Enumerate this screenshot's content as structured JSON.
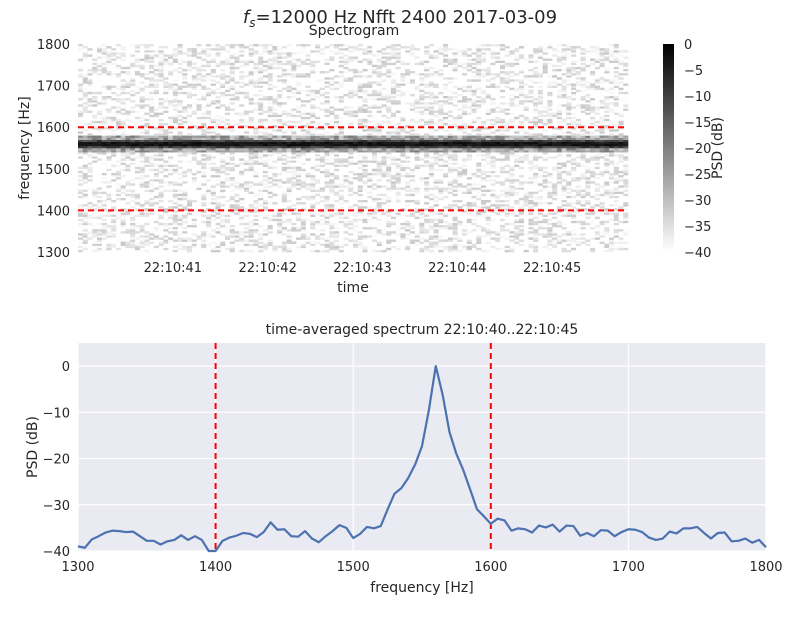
{
  "figure": {
    "suptitle_prefix": "f",
    "suptitle_sub": "s",
    "suptitle_rest": "=12000 Hz  Nfft 2400  2017-03-09"
  },
  "colors": {
    "line": "#4c72b0",
    "marker": "#ff0000",
    "grid_bg": "#eaeaf2",
    "grid_line": "#ffffff"
  },
  "chart_data": [
    {
      "type": "heatmap",
      "title": "Spectrogram",
      "xlabel": "time",
      "ylabel": "frequency [Hz]",
      "ylim": [
        1300,
        1800
      ],
      "yticks": [
        1300,
        1400,
        1500,
        1600,
        1700,
        1800
      ],
      "xlim": [
        0,
        5.8
      ],
      "xticks": [
        {
          "t": 1,
          "label": "22:10:41"
        },
        {
          "t": 2,
          "label": "22:10:42"
        },
        {
          "t": 3,
          "label": "22:10:43"
        },
        {
          "t": 4,
          "label": "22:10:44"
        },
        {
          "t": 5,
          "label": "22:10:45"
        }
      ],
      "tone_frequency": 1560,
      "markers": [
        1400,
        1600
      ],
      "colorbar": {
        "label": "PSD (dB)",
        "range": [
          -40,
          0
        ],
        "ticks": [
          0,
          -5,
          -10,
          -15,
          -20,
          -25,
          -30,
          -35,
          -40
        ]
      }
    },
    {
      "type": "line",
      "title": "time-averaged spectrum 22:10:40..22:10:45",
      "xlabel": "frequency [Hz]",
      "ylabel": "PSD (dB)",
      "xlim": [
        1300,
        1800
      ],
      "ylim": [
        -40,
        5
      ],
      "xticks": [
        1300,
        1400,
        1500,
        1600,
        1700,
        1800
      ],
      "yticks": [
        0,
        -10,
        -20,
        -30,
        -40
      ],
      "markers": [
        1400,
        1600
      ],
      "series": [
        {
          "x": [
            1300,
            1305,
            1310,
            1315,
            1320,
            1325,
            1330,
            1335,
            1340,
            1345,
            1350,
            1355,
            1360,
            1365,
            1370,
            1375,
            1380,
            1385,
            1390,
            1395,
            1400,
            1405,
            1410,
            1415,
            1420,
            1425,
            1430,
            1435,
            1440,
            1445,
            1450,
            1455,
            1460,
            1465,
            1470,
            1475,
            1480,
            1485,
            1490,
            1495,
            1500,
            1505,
            1510,
            1515,
            1520,
            1525,
            1530,
            1535,
            1540,
            1545,
            1550,
            1555,
            1560,
            1565,
            1570,
            1575,
            1580,
            1585,
            1590,
            1595,
            1600,
            1605,
            1610,
            1615,
            1620,
            1625,
            1630,
            1635,
            1640,
            1645,
            1650,
            1655,
            1660,
            1665,
            1670,
            1675,
            1680,
            1685,
            1690,
            1695,
            1700,
            1705,
            1710,
            1715,
            1720,
            1725,
            1730,
            1735,
            1740,
            1745,
            1750,
            1755,
            1760,
            1765,
            1770,
            1775,
            1780,
            1785,
            1790,
            1795,
            1800
          ],
          "values": [
            -39,
            -39.3,
            -37.5,
            -36.8,
            -36,
            -35.6,
            -35.7,
            -35.9,
            -35.8,
            -36.8,
            -37.8,
            -37.8,
            -38.6,
            -37.9,
            -37.6,
            -36.6,
            -37.6,
            -36.8,
            -37.6,
            -40.2,
            -40.0,
            -37.8,
            -37.1,
            -36.7,
            -36.1,
            -36.3,
            -37.0,
            -35.9,
            -33.8,
            -35.4,
            -35.3,
            -36.8,
            -36.9,
            -35.7,
            -37.3,
            -38.1,
            -36.8,
            -35.7,
            -34.4,
            -35.0,
            -37.2,
            -36.3,
            -34.8,
            -35.1,
            -34.6,
            -31.0,
            -27.6,
            -26.4,
            -24.2,
            -21.3,
            -17.3,
            -9.5,
            0,
            -6.2,
            -14.3,
            -19.0,
            -22.5,
            -26.7,
            -31.0,
            -32.5,
            -34.1,
            -33.0,
            -33.4,
            -35.6,
            -35.1,
            -35.3,
            -36.0,
            -34.5,
            -34.9,
            -34.3,
            -35.8,
            -34.5,
            -34.6,
            -36.7,
            -36.1,
            -36.8,
            -35.5,
            -35.6,
            -36.8,
            -35.9,
            -35.3,
            -35.4,
            -35.9,
            -37.1,
            -37.6,
            -37.3,
            -35.8,
            -36.2,
            -35.1,
            -35.1,
            -34.8,
            -36.1,
            -37.3,
            -36.1,
            -36.0,
            -37.9,
            -37.8,
            -37.3,
            -38.2,
            -37.6,
            -39.2
          ]
        }
      ]
    }
  ]
}
